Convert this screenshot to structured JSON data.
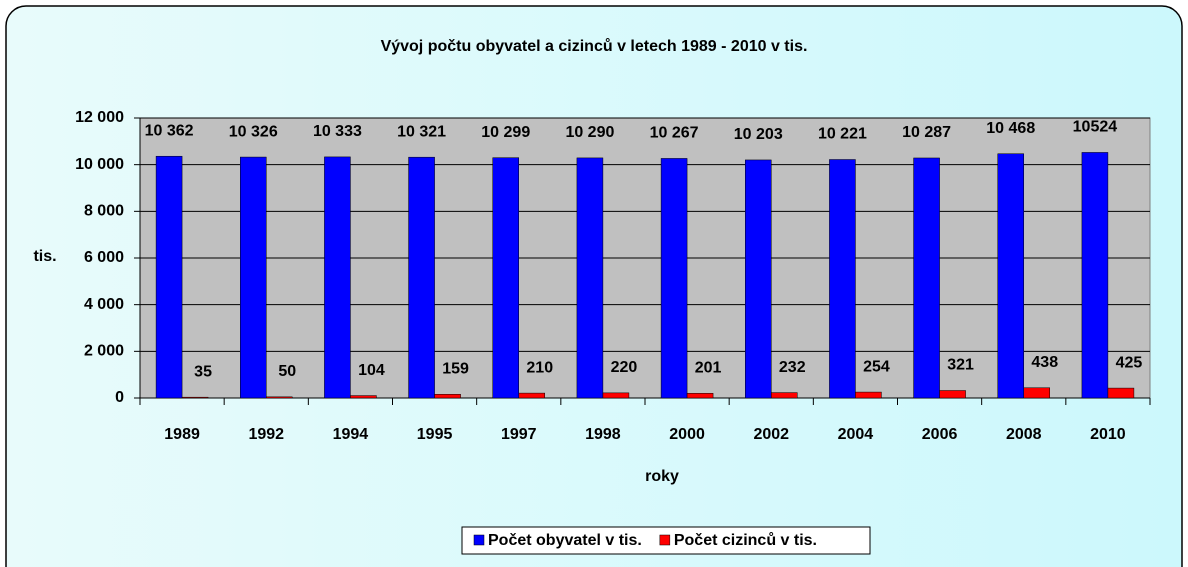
{
  "chart_data": {
    "type": "bar",
    "title": "Vývoj počtu obyvatel a cizinců v letech 1989 - 2010 v tis.",
    "y_label": "tis.",
    "x_label": "roky",
    "categories": [
      "1989",
      "1992",
      "1994",
      "1995",
      "1997",
      "1998",
      "2000",
      "2002",
      "2004",
      "2006",
      "2008",
      "2010"
    ],
    "series": [
      {
        "name": "Počet obyvatel v tis.",
        "color": "#0000ff",
        "values": [
          10362,
          10326,
          10333,
          10321,
          10299,
          10290,
          10267,
          10203,
          10221,
          10287,
          10468,
          10524
        ],
        "value_labels": [
          "10 362",
          "10 326",
          "10 333",
          "10 321",
          "10 299",
          "10 290",
          "10 267",
          "10 203",
          "10 221",
          "10 287",
          "10 468",
          "10524"
        ]
      },
      {
        "name": "Počet cizinců v tis.",
        "color": "#ff0000",
        "values": [
          35,
          50,
          104,
          159,
          210,
          220,
          201,
          232,
          254,
          321,
          438,
          425
        ]
      }
    ],
    "ylim": [
      0,
      12000
    ],
    "yticks": [
      0,
      {
        "value": 2000,
        "label": "2 000"
      },
      {
        "value": 4000,
        "label": "4 000"
      },
      {
        "value": 6000,
        "label": "6 000"
      },
      {
        "value": 8000,
        "label": "8 000"
      },
      {
        "value": 10000,
        "label": "10 000"
      },
      {
        "value": 12000,
        "label": "12 000"
      }
    ],
    "grid": true,
    "legend": "bottom"
  }
}
